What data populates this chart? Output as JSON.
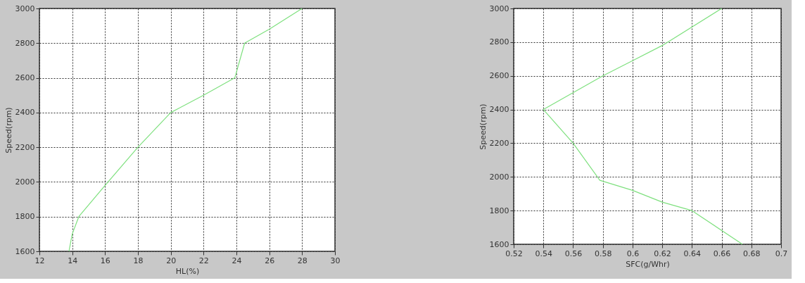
{
  "chart_data": [
    {
      "type": "line",
      "xlabel": "HL(%)",
      "ylabel": "Speed(rpm)",
      "xlim": [
        12,
        30
      ],
      "xticks": [
        12,
        14,
        16,
        18,
        20,
        22,
        24,
        26,
        28,
        30
      ],
      "ylim": [
        1600,
        3000
      ],
      "yticks": [
        1600,
        1800,
        2000,
        2200,
        2400,
        2600,
        2800,
        3000
      ],
      "grid": true,
      "marker": "none",
      "line_style": "solid",
      "series": [
        {
          "color": "#7ee07e",
          "x": [
            13.8,
            14,
            14.4,
            16,
            18,
            20,
            22,
            23.9,
            24.5,
            26,
            28
          ],
          "values": [
            1600,
            1700,
            1800,
            1980,
            2200,
            2400,
            2500,
            2600,
            2800,
            2880,
            3000
          ]
        }
      ]
    },
    {
      "type": "line",
      "xlabel": "SFC(g/Whr)",
      "ylabel": "Speed(rpm)",
      "xlim": [
        0.52,
        0.7
      ],
      "xticks": [
        0.52,
        0.54,
        0.56,
        0.58,
        0.6,
        0.62,
        0.64,
        0.66,
        0.68,
        0.7
      ],
      "ylim": [
        1600,
        3000
      ],
      "yticks": [
        1600,
        1800,
        2000,
        2200,
        2400,
        2600,
        2800,
        3000
      ],
      "grid": true,
      "marker": "none",
      "line_style": "solid",
      "series": [
        {
          "color": "#7ee07e",
          "x": [
            0.674,
            0.64,
            0.62,
            0.6,
            0.578,
            0.56,
            0.54,
            0.58,
            0.6,
            0.62,
            0.66
          ],
          "values": [
            1600,
            1800,
            1850,
            1920,
            1980,
            2200,
            2400,
            2600,
            2690,
            2780,
            3000
          ]
        }
      ]
    }
  ]
}
